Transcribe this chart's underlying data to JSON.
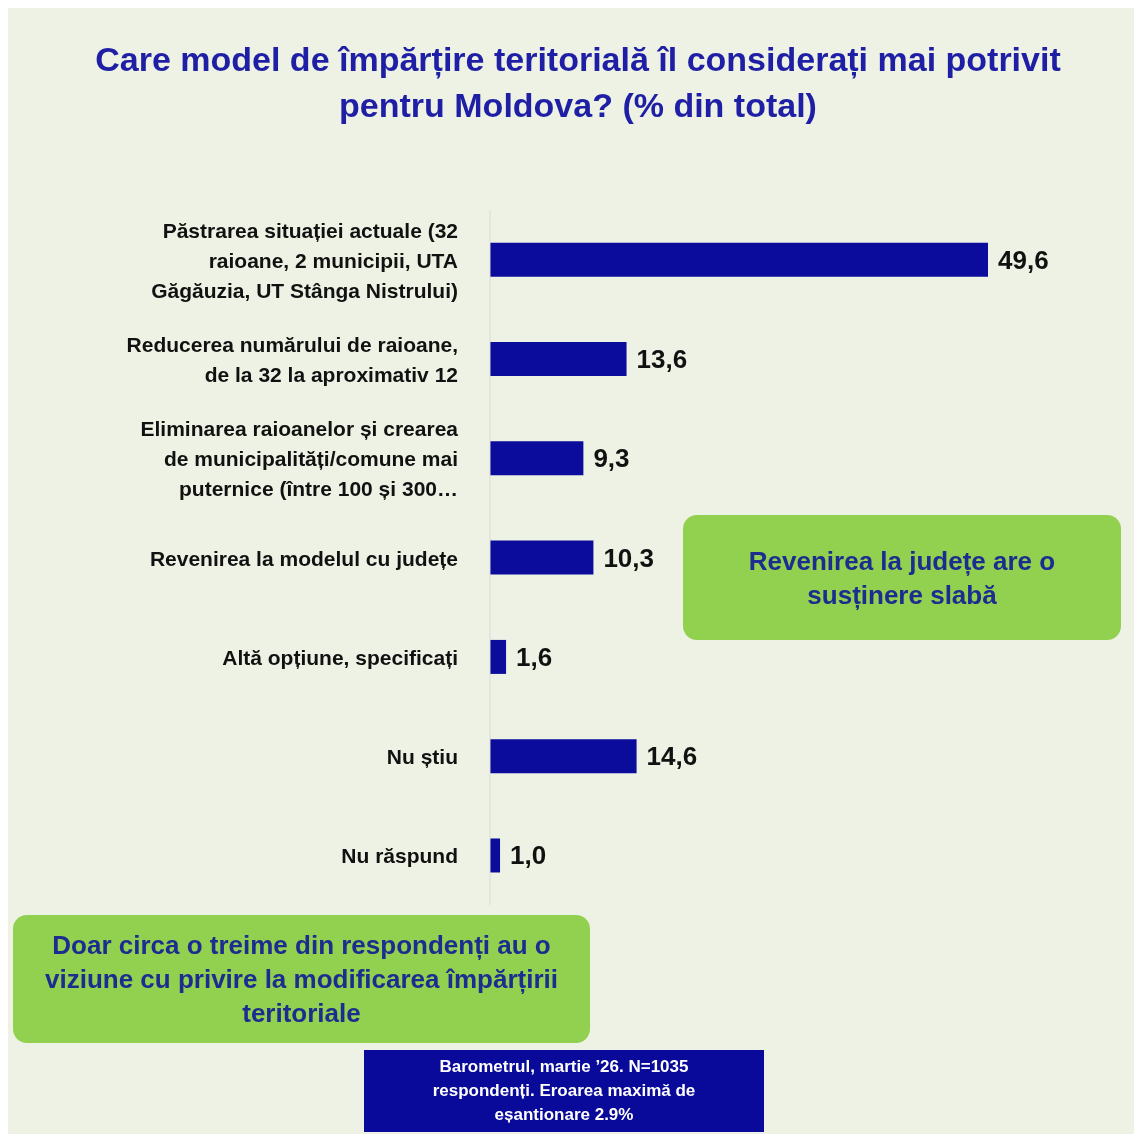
{
  "chart_data": {
    "type": "bar",
    "orientation": "horizontal",
    "title": "Care model de împărțire teritorială îl considerați mai potrivit pentru Moldova? (% din total)",
    "categories": [
      "Păstrarea situației actuale (32 raioane, 2 municipii, UTA Găgăuzia, UT Stânga Nistrului)",
      "Reducerea numărului de raioane, de la 32 la aproximativ 12",
      "Eliminarea raioanelor și crearea de municipalități/comune mai puternice (între 100 și 300…",
      "Revenirea la modelul cu județe",
      "Altă opțiune, specificați",
      "Nu știu",
      "Nu răspund"
    ],
    "values": [
      49.6,
      13.6,
      9.3,
      10.3,
      1.6,
      14.6,
      1.0
    ],
    "value_labels": [
      "49,6",
      "13,6",
      "9,3",
      "10,3",
      "1,6",
      "14,6",
      "1,0"
    ],
    "color": "#0b0b9c",
    "annotations": [
      "Revenirea la județe are o susținere slabă",
      "Doar circa o treime din respondenți au o viziune cu privire la modificarea împărțirii teritoriale",
      "Barometrul, martie ’26. N=1035 respondenți. Eroarea maximă de eșantionare 2.9%"
    ]
  }
}
